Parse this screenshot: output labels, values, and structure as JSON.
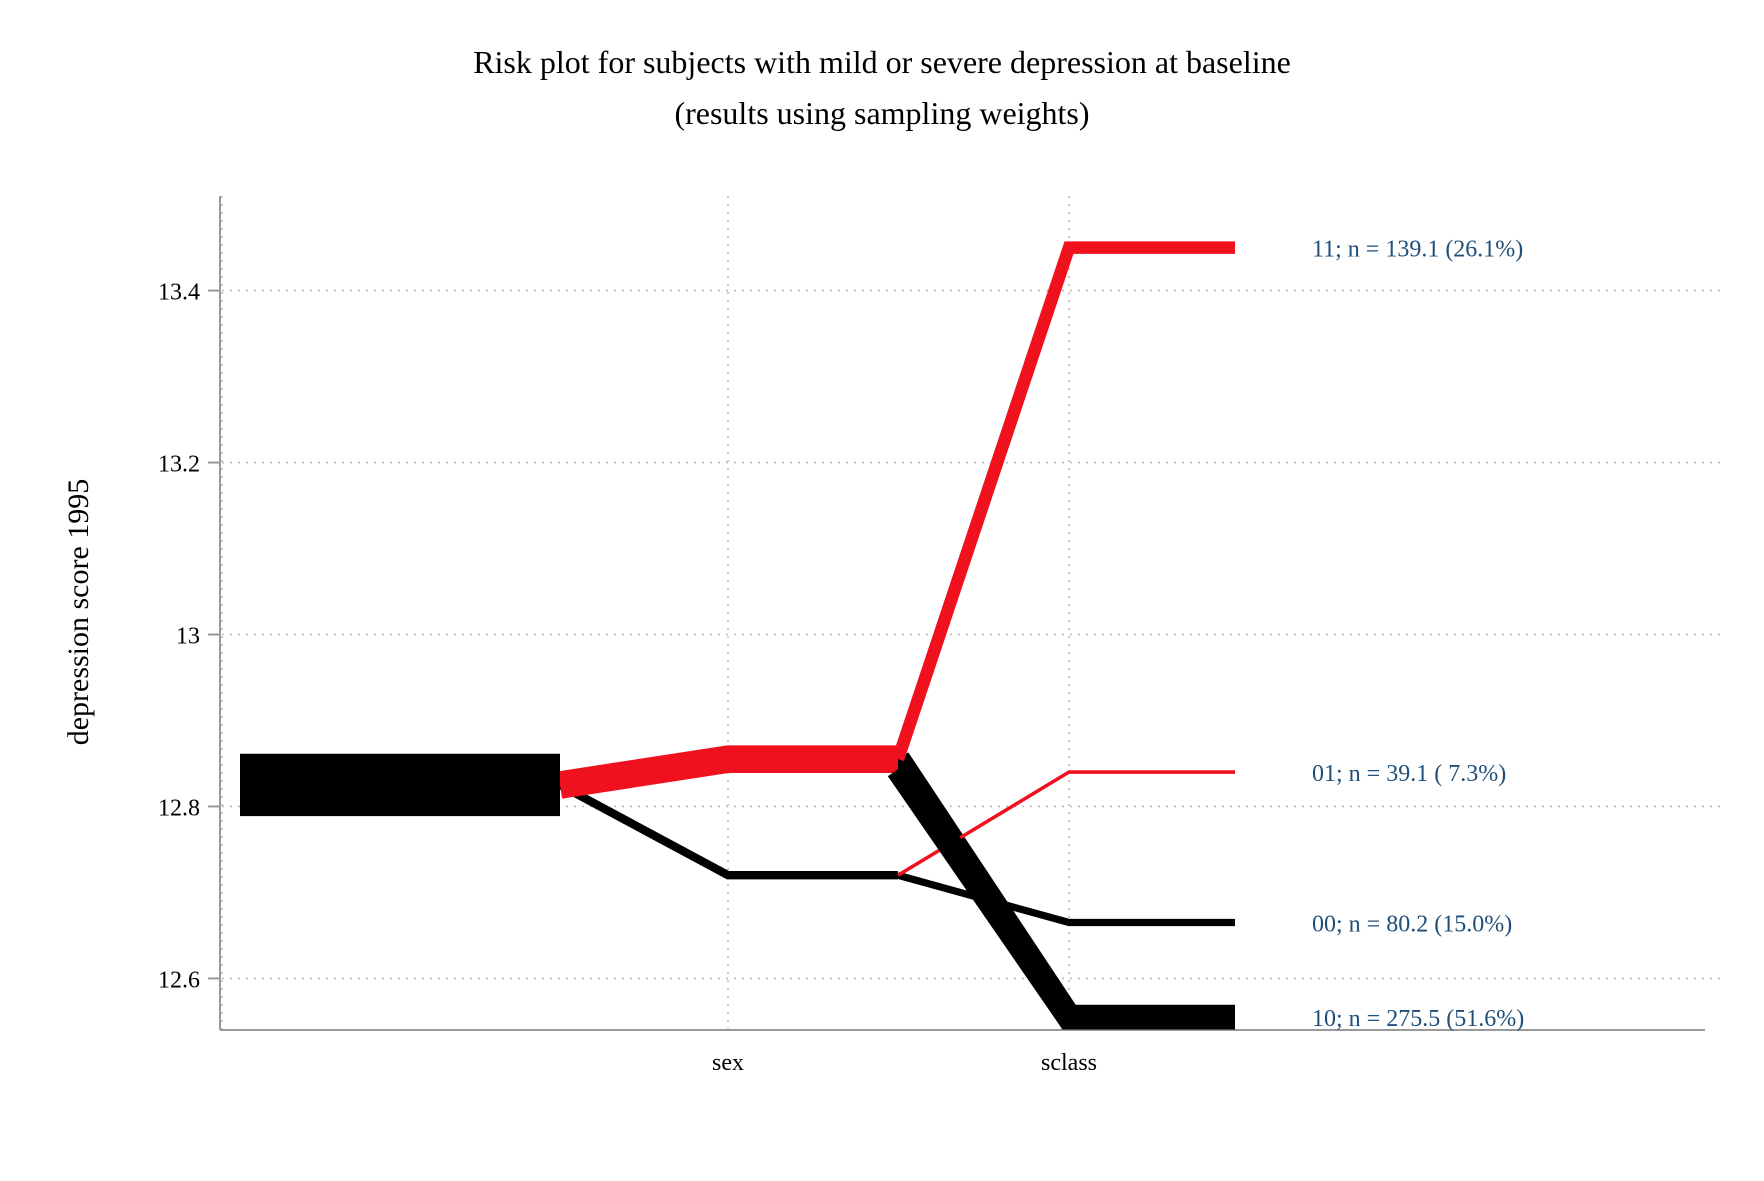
{
  "chart_data": {
    "type": "line",
    "title": "Risk plot for subjects with mild or severe depression at baseline",
    "subtitle": "(results using sampling weights)",
    "ylabel": "depression score 1995",
    "xlabel": "",
    "ylim": [
      12.54,
      13.51
    ],
    "yticks": [
      "12.6",
      "12.8",
      "13",
      "13.2",
      "13.4"
    ],
    "ytick_values": [
      12.6,
      12.8,
      13.0,
      13.2,
      13.4
    ],
    "categories": [
      "",
      "sex",
      "sclass"
    ],
    "grid": true,
    "colors": {
      "exposed": "#f0111e",
      "unexposed": "#000000",
      "label": "#1f4e79",
      "axis": "#999999"
    },
    "baseline": {
      "value": 12.825,
      "weight": 1.0
    },
    "branches": [
      {
        "code": "1",
        "color": "exposed",
        "weight": 0.574,
        "value": 12.855
      },
      {
        "code": "0",
        "color": "unexposed",
        "weight": 0.174,
        "value": 12.72
      }
    ],
    "series": [
      {
        "name": "11",
        "label": "11;  n = 139.1 (26.1%)",
        "parent": "1",
        "value": 13.45,
        "weight": 0.261,
        "color": "exposed"
      },
      {
        "name": "01",
        "label": "01;  n = 39.1 ( 7.3%)",
        "parent": "0",
        "value": 12.84,
        "weight": 0.073,
        "color": "exposed"
      },
      {
        "name": "00",
        "label": "00;  n = 80.2 (15.0%)",
        "parent": "0",
        "value": 12.665,
        "weight": 0.15,
        "color": "unexposed"
      },
      {
        "name": "10",
        "label": "10;  n = 275.5 (51.6%)",
        "parent": "1",
        "value": 12.555,
        "weight": 0.516,
        "color": "unexposed"
      }
    ]
  }
}
